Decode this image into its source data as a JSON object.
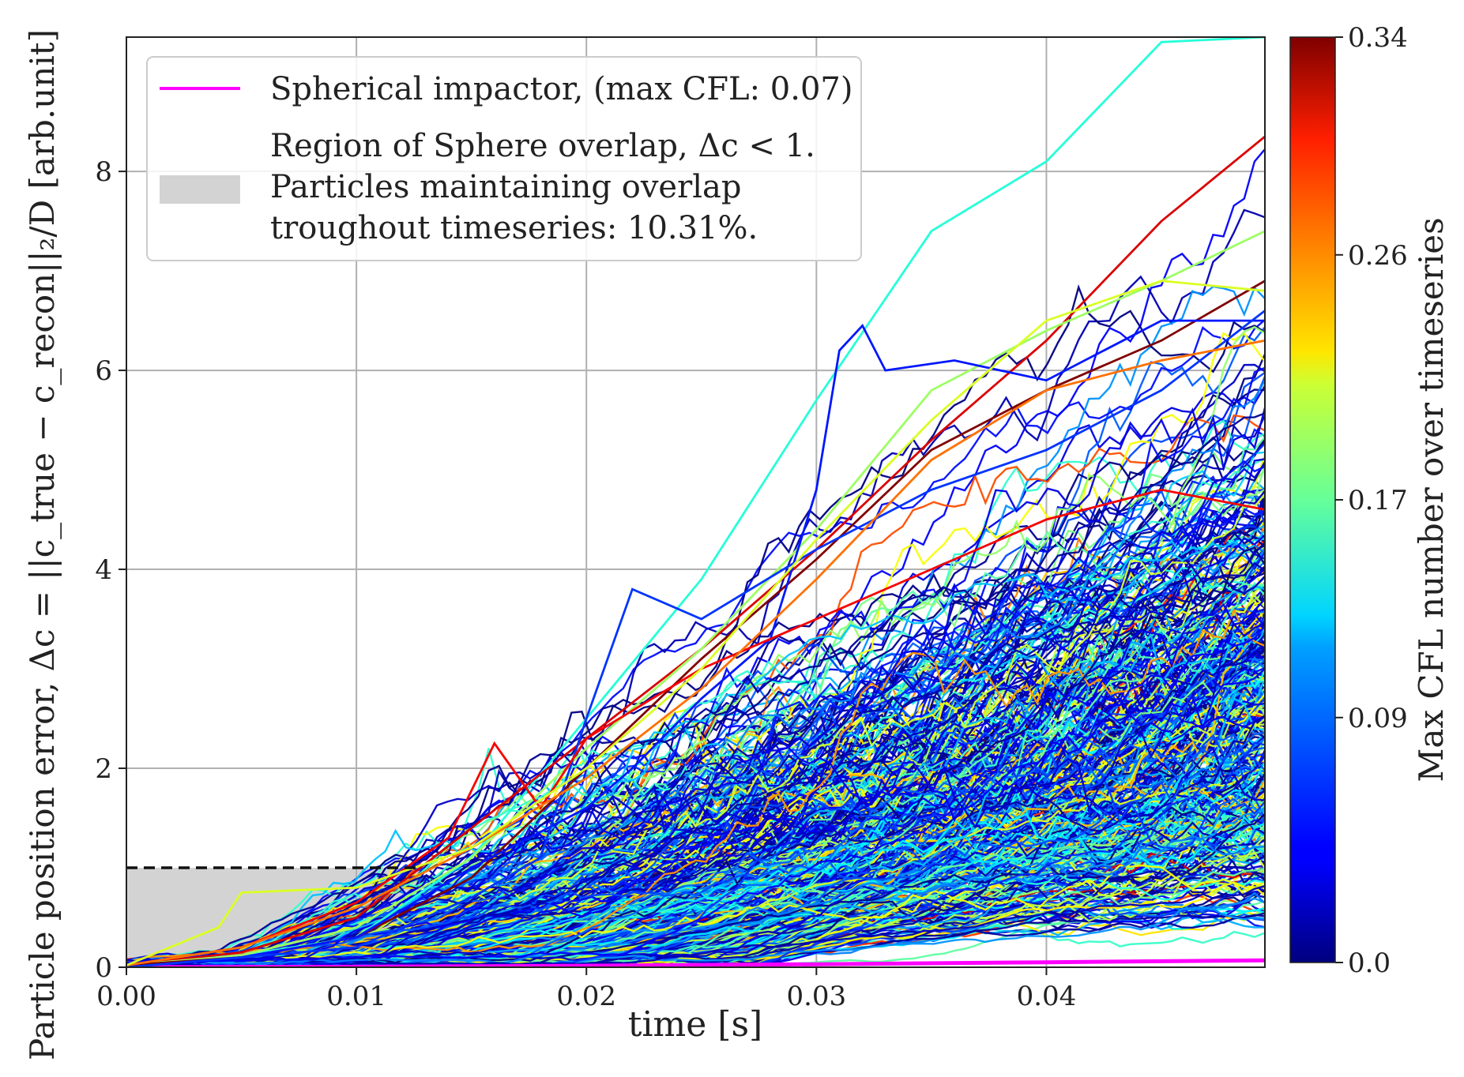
{
  "chart_data": {
    "type": "line",
    "title": "",
    "xlabel": "time [s]",
    "ylabel": "Particle position error, Δc = ||c_true − c_recon||₂/D [arb.unit]",
    "xlim": [
      0.0,
      0.0495
    ],
    "ylim": [
      0.0,
      9.35
    ],
    "xticks": [
      0.0,
      0.01,
      0.02,
      0.03,
      0.04
    ],
    "xtick_labels": [
      "0.00",
      "0.01",
      "0.02",
      "0.03",
      "0.04"
    ],
    "yticks": [
      0,
      2,
      4,
      6,
      8
    ],
    "ytick_labels": [
      "0",
      "2",
      "4",
      "6",
      "8"
    ],
    "grid": true,
    "legend_position": "top-left",
    "legend": [
      {
        "label": "Spherical impactor, (max CFL: 0.07)",
        "color": "#ff00ff",
        "kind": "line"
      },
      {
        "label_lines": [
          "Region of Sphere overlap, Δc < 1.",
          "Particles maintaining overlap",
          "troughout timeseries: 10.31%."
        ],
        "color": "#d3d3d3",
        "kind": "patch"
      }
    ],
    "overlap_region": {
      "y_max": 1.0,
      "x_end": 0.0127
    },
    "colorbar": {
      "label": "Max CFL number over timeseries",
      "range": [
        0.0,
        0.34
      ],
      "ticks": [
        0.0,
        0.09,
        0.17,
        0.26,
        0.34
      ],
      "tick_labels": [
        "0.0",
        "0.09",
        "0.17",
        "0.26",
        "0.34"
      ],
      "colormap": "jet"
    },
    "series": [
      {
        "name": "Spherical impactor",
        "color": "#ff00ff",
        "x": [
          0.0,
          0.01,
          0.02,
          0.03,
          0.04,
          0.0495
        ],
        "y": [
          0.0,
          0.005,
          0.015,
          0.03,
          0.05,
          0.07
        ]
      },
      {
        "name": "p-cyan-top",
        "cfl": 0.14,
        "x": [
          0.0,
          0.005,
          0.01,
          0.015,
          0.02,
          0.025,
          0.03,
          0.035,
          0.04,
          0.045,
          0.0495
        ],
        "y": [
          0.02,
          0.12,
          0.3,
          1.1,
          2.5,
          3.9,
          5.7,
          7.4,
          8.1,
          9.3,
          9.35
        ]
      },
      {
        "name": "p-red-high",
        "cfl": 0.31,
        "x": [
          0.0,
          0.005,
          0.01,
          0.015,
          0.02,
          0.025,
          0.03,
          0.035,
          0.04,
          0.045,
          0.0495
        ],
        "y": [
          0.02,
          0.15,
          0.5,
          1.4,
          2.3,
          3.2,
          4.2,
          5.3,
          6.3,
          7.5,
          8.35
        ]
      },
      {
        "name": "p-green-high",
        "cfl": 0.18,
        "x": [
          0.0,
          0.005,
          0.01,
          0.015,
          0.02,
          0.025,
          0.03,
          0.035,
          0.04,
          0.045,
          0.0495
        ],
        "y": [
          0.02,
          0.12,
          0.4,
          1.1,
          2.2,
          3.2,
          4.4,
          5.8,
          6.4,
          6.9,
          7.4
        ]
      },
      {
        "name": "p-darkred",
        "cfl": 0.34,
        "x": [
          0.0,
          0.005,
          0.01,
          0.015,
          0.02,
          0.025,
          0.03,
          0.035,
          0.04,
          0.045,
          0.0495
        ],
        "y": [
          0.02,
          0.1,
          0.3,
          0.9,
          2.0,
          3.1,
          4.1,
          5.2,
          5.8,
          6.3,
          6.9
        ]
      },
      {
        "name": "p-blue-spike",
        "cfl": 0.05,
        "x": [
          0.0,
          0.005,
          0.01,
          0.015,
          0.02,
          0.022,
          0.025,
          0.028,
          0.03,
          0.031,
          0.032,
          0.033,
          0.036,
          0.04,
          0.045,
          0.0495
        ],
        "y": [
          0.0,
          0.1,
          0.3,
          1.0,
          1.6,
          2.0,
          2.7,
          3.3,
          4.8,
          6.2,
          6.45,
          6.0,
          6.1,
          5.9,
          6.5,
          6.5
        ]
      },
      {
        "name": "p-blue-bump",
        "cfl": 0.06,
        "x": [
          0.0,
          0.01,
          0.015,
          0.018,
          0.02,
          0.022,
          0.025,
          0.03,
          0.035,
          0.04,
          0.045,
          0.0495
        ],
        "y": [
          0.0,
          0.2,
          0.7,
          1.1,
          2.5,
          3.8,
          3.5,
          4.2,
          4.8,
          5.2,
          5.8,
          6.6
        ]
      },
      {
        "name": "p-red-bump",
        "cfl": 0.3,
        "x": [
          0.0,
          0.005,
          0.01,
          0.014,
          0.016,
          0.018,
          0.02,
          0.025,
          0.03,
          0.035,
          0.04,
          0.045,
          0.0495
        ],
        "y": [
          0.02,
          0.2,
          0.65,
          1.3,
          2.25,
          1.6,
          2.3,
          3.0,
          3.5,
          4.0,
          4.5,
          4.8,
          4.6
        ]
      },
      {
        "name": "p-orange",
        "cfl": 0.26,
        "x": [
          0.0,
          0.005,
          0.01,
          0.015,
          0.02,
          0.025,
          0.03,
          0.035,
          0.04,
          0.045,
          0.0495
        ],
        "y": [
          0.02,
          0.2,
          0.6,
          1.2,
          1.9,
          2.8,
          3.9,
          5.1,
          5.8,
          6.1,
          6.3
        ]
      },
      {
        "name": "p-green-mid",
        "cfl": 0.2,
        "x": [
          0.0,
          0.004,
          0.005,
          0.01,
          0.015,
          0.02,
          0.025,
          0.03,
          0.035,
          0.04,
          0.045,
          0.0495
        ],
        "y": [
          0.02,
          0.4,
          0.75,
          0.8,
          1.2,
          2.0,
          3.0,
          4.3,
          5.5,
          6.5,
          6.9,
          6.8
        ]
      }
    ]
  }
}
